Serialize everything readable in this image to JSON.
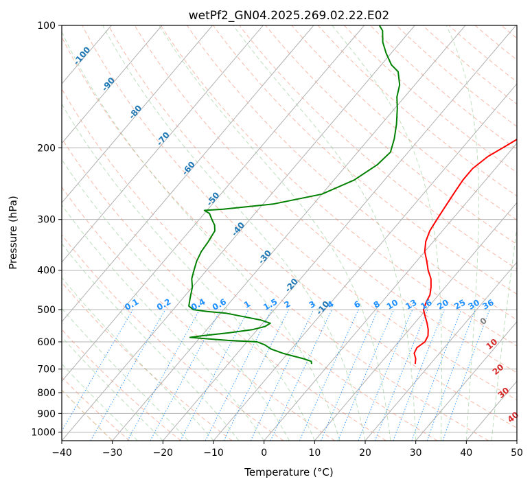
{
  "chart_data": {
    "type": "skew-t log-p",
    "title": "wetPf2_GN04.2025.269.02.22.E02",
    "xlabel": "Temperature (°C)",
    "ylabel": "Pressure (hPa)",
    "xlim": [
      -40,
      50
    ],
    "ylim": [
      1050,
      100
    ],
    "x_ticks": [
      -40,
      -30,
      -20,
      -10,
      0,
      10,
      20,
      30,
      40,
      50
    ],
    "x_tick_labels": [
      "−40",
      "−30",
      "−20",
      "−10",
      "0",
      "10",
      "20",
      "30",
      "40",
      "50"
    ],
    "y_ticks": [
      100,
      200,
      300,
      400,
      500,
      600,
      700,
      800,
      900,
      1000
    ],
    "y_tick_labels": [
      "100",
      "200",
      "300",
      "400",
      "500",
      "600",
      "700",
      "800",
      "900",
      "1000"
    ],
    "grid": true,
    "series": [
      {
        "name": "temperature",
        "color": "#ff0000",
        "points": [
          [
            680,
            17.0
          ],
          [
            660,
            16.2
          ],
          [
            640,
            15.0
          ],
          [
            620,
            14.6
          ],
          [
            600,
            15.2
          ],
          [
            580,
            14.8
          ],
          [
            560,
            13.8
          ],
          [
            540,
            12.5
          ],
          [
            520,
            11.0
          ],
          [
            500,
            9.5
          ],
          [
            480,
            8.8
          ],
          [
            460,
            8.3
          ],
          [
            440,
            7.2
          ],
          [
            420,
            5.8
          ],
          [
            400,
            3.8
          ],
          [
            380,
            2.0
          ],
          [
            360,
            0.0
          ],
          [
            340,
            -1.5
          ],
          [
            320,
            -2.5
          ],
          [
            300,
            -3.0
          ],
          [
            280,
            -3.5
          ],
          [
            260,
            -4.0
          ],
          [
            240,
            -4.5
          ],
          [
            225,
            -4.5
          ],
          [
            210,
            -3.5
          ],
          [
            200,
            -2.0
          ],
          [
            180,
            1.0
          ],
          [
            160,
            4.0
          ],
          [
            145,
            6.5
          ],
          [
            135,
            8.0
          ],
          [
            125,
            10.5
          ],
          [
            115,
            13.5
          ],
          [
            107,
            16.0
          ],
          [
            100,
            18.0
          ]
        ]
      },
      {
        "name": "dewpoint",
        "color": "#008000",
        "points": [
          [
            680,
            -3.5
          ],
          [
            670,
            -4.0
          ],
          [
            660,
            -6.0
          ],
          [
            650,
            -8.5
          ],
          [
            640,
            -11.0
          ],
          [
            625,
            -14.0
          ],
          [
            610,
            -16.0
          ],
          [
            600,
            -18.0
          ],
          [
            595,
            -24.0
          ],
          [
            590,
            -28.0
          ],
          [
            585,
            -32.0
          ],
          [
            580,
            -30.0
          ],
          [
            570,
            -25.0
          ],
          [
            560,
            -21.0
          ],
          [
            550,
            -19.0
          ],
          [
            540,
            -18.5
          ],
          [
            530,
            -21.0
          ],
          [
            520,
            -25.0
          ],
          [
            510,
            -29.0
          ],
          [
            505,
            -33.0
          ],
          [
            500,
            -36.0
          ],
          [
            490,
            -37.5
          ],
          [
            470,
            -38.5
          ],
          [
            440,
            -40.0
          ],
          [
            420,
            -41.5
          ],
          [
            400,
            -42.5
          ],
          [
            380,
            -43.5
          ],
          [
            360,
            -44.2
          ],
          [
            340,
            -44.5
          ],
          [
            320,
            -45.0
          ],
          [
            310,
            -46.0
          ],
          [
            300,
            -47.5
          ],
          [
            290,
            -49.0
          ],
          [
            285,
            -50.5
          ],
          [
            283,
            -47.0
          ],
          [
            275,
            -38.0
          ],
          [
            260,
            -30.0
          ],
          [
            240,
            -26.0
          ],
          [
            220,
            -24.0
          ],
          [
            205,
            -23.5
          ],
          [
            190,
            -25.0
          ],
          [
            175,
            -27.0
          ],
          [
            160,
            -29.5
          ],
          [
            150,
            -31.5
          ],
          [
            140,
            -33.0
          ],
          [
            130,
            -35.5
          ],
          [
            125,
            -38.0
          ],
          [
            117,
            -41.0
          ],
          [
            110,
            -43.5
          ],
          [
            103,
            -45.5
          ],
          [
            100,
            -47.0
          ]
        ]
      }
    ],
    "reference_lines": {
      "isotherms": {
        "color": "#b0b0b0",
        "style": "solid"
      },
      "dry_adiabats": {
        "color": "#f08060",
        "style": "dashed"
      },
      "moist_adiabats": {
        "color": "#7cc07c",
        "style": "dashed"
      },
      "mixing_ratio": {
        "color": "#1e90ff",
        "style": "dotted"
      },
      "ice_adiabats": {
        "color": "#d8b88a",
        "style": "dashed"
      }
    },
    "mixing_ratio_labels": [
      "0.1",
      "0.2",
      "0.4",
      "0.6",
      "1",
      "1.5",
      "2",
      "3",
      "4",
      "6",
      "8",
      "10",
      "13",
      "16",
      "20",
      "25",
      "30",
      "36"
    ],
    "mixing_ratio_values": [
      0.1,
      0.2,
      0.4,
      0.6,
      1,
      1.5,
      2,
      3,
      4,
      6,
      8,
      10,
      13,
      16,
      20,
      25,
      30,
      36
    ],
    "mixing_ratio_label_color": "#1e90ff",
    "wetbulb_isotherm_labels": [
      {
        "text": "-100",
        "p": 120
      },
      {
        "text": "-90",
        "p": 141
      },
      {
        "text": "-80",
        "p": 165
      },
      {
        "text": "-70",
        "p": 192
      },
      {
        "text": "-60",
        "p": 227
      },
      {
        "text": "-50",
        "p": 270
      },
      {
        "text": "-40",
        "p": 320
      },
      {
        "text": "-30",
        "p": 375
      },
      {
        "text": "-20",
        "p": 440
      },
      {
        "text": "-10",
        "p": 500
      }
    ],
    "wetbulb_label_color": "#1f77b4",
    "potential_temp_labels": [
      {
        "text": "0",
        "t": 24,
        "p": 540
      },
      {
        "text": "10",
        "t": 29.5,
        "p": 615
      },
      {
        "text": "20",
        "t": 35,
        "p": 710
      },
      {
        "text": "30",
        "t": 40,
        "p": 810
      },
      {
        "text": "40",
        "t": 46,
        "p": 930
      }
    ],
    "potential_temp_label_colors": [
      "#808080",
      "#d62728",
      "#d62728",
      "#d62728",
      "#d62728"
    ]
  }
}
